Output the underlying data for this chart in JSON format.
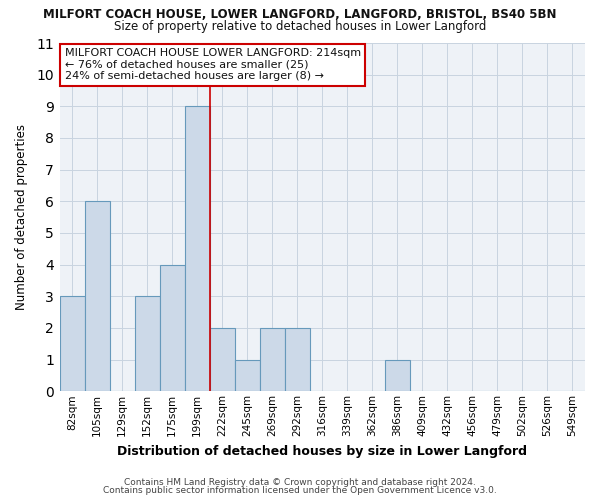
{
  "title": "MILFORT COACH HOUSE, LOWER LANGFORD, LANGFORD, BRISTOL, BS40 5BN",
  "subtitle": "Size of property relative to detached houses in Lower Langford",
  "xlabel": "Distribution of detached houses by size in Lower Langford",
  "ylabel": "Number of detached properties",
  "bar_color": "#ccd9e8",
  "bar_edge_color": "#6699bb",
  "bin_labels": [
    "82sqm",
    "105sqm",
    "129sqm",
    "152sqm",
    "175sqm",
    "199sqm",
    "222sqm",
    "245sqm",
    "269sqm",
    "292sqm",
    "316sqm",
    "339sqm",
    "362sqm",
    "386sqm",
    "409sqm",
    "432sqm",
    "456sqm",
    "479sqm",
    "502sqm",
    "526sqm",
    "549sqm"
  ],
  "bar_values": [
    3,
    6,
    0,
    3,
    4,
    9,
    2,
    1,
    2,
    2,
    0,
    0,
    0,
    1,
    0,
    0,
    0,
    0,
    0,
    0,
    0
  ],
  "ylim": [
    0,
    11
  ],
  "yticks": [
    0,
    1,
    2,
    3,
    4,
    5,
    6,
    7,
    8,
    9,
    10,
    11
  ],
  "marker_color": "#cc0000",
  "annotation_title": "MILFORT COACH HOUSE LOWER LANGFORD: 214sqm",
  "annotation_line1": "← 76% of detached houses are smaller (25)",
  "annotation_line2": "24% of semi-detached houses are larger (8) →",
  "annotation_box_color": "#ffffff",
  "annotation_box_edge": "#cc0000",
  "grid_color": "#c8d4e0",
  "bg_color": "#ffffff",
  "plot_bg_color": "#eef2f7",
  "footer1": "Contains HM Land Registry data © Crown copyright and database right 2024.",
  "footer2": "Contains public sector information licensed under the Open Government Licence v3.0."
}
